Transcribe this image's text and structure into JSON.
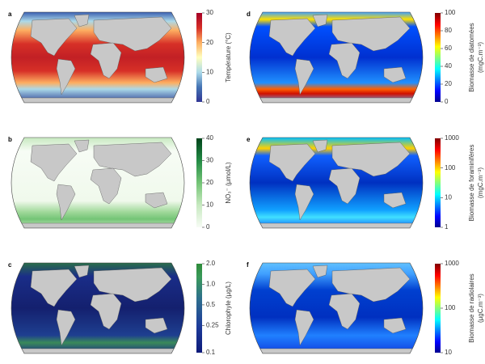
{
  "panels": [
    {
      "letter": "a",
      "colorbar": {
        "title": [
          "Température (°C)"
        ],
        "scale": "linear",
        "lim": [
          0,
          30
        ],
        "ticks": [
          0,
          10,
          20,
          30
        ]
      }
    },
    {
      "letter": "b",
      "colorbar": {
        "title": [
          "NO₃⁻ (µmol/L)"
        ],
        "scale": "linear",
        "lim": [
          0,
          40
        ],
        "ticks": [
          0,
          10,
          20,
          30,
          40
        ]
      }
    },
    {
      "letter": "c",
      "colorbar": {
        "title": [
          "Chlorophyle (µg/L)"
        ],
        "scale": "log",
        "lim": [
          0.1,
          2
        ],
        "ticks": [
          0.1,
          0.25,
          0.5,
          {
            "value": 1,
            "label": "1.0"
          },
          {
            "value": 2,
            "label": "2.0"
          }
        ]
      }
    },
    {
      "letter": "d",
      "colorbar": {
        "title": [
          "Biomasse de diatomées",
          "(mgC.m⁻³)"
        ],
        "scale": "linear",
        "lim": [
          0,
          100
        ],
        "ticks": [
          0,
          20,
          40,
          60,
          80,
          100
        ]
      }
    },
    {
      "letter": "e",
      "colorbar": {
        "title": [
          "Biomasse de foraminifères",
          "(mgC.m⁻³)"
        ],
        "scale": "log",
        "lim": [
          1,
          1000
        ],
        "ticks": [
          1,
          10,
          100,
          1000
        ]
      }
    },
    {
      "letter": "f",
      "colorbar": {
        "title": [
          "Biomasse de radiolaires",
          "(µgC.m⁻³)"
        ],
        "scale": "log",
        "lim": [
          10,
          1000
        ],
        "ticks": [
          10,
          100,
          1000
        ]
      }
    }
  ]
}
